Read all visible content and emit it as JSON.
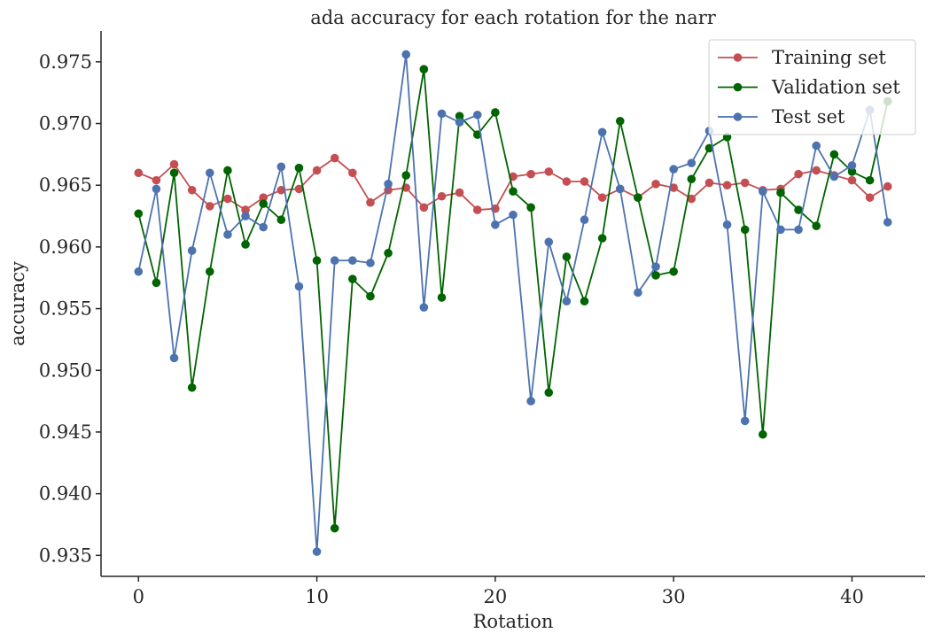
{
  "chart_data": {
    "type": "line",
    "title": "ada accuracy for each rotation for the narr",
    "xlabel": "Rotation",
    "ylabel": "accuracy",
    "xlim": [
      -2.1,
      44.1
    ],
    "ylim": [
      0.9333,
      0.9775
    ],
    "xticks": [
      0,
      10,
      20,
      30,
      40
    ],
    "yticks": [
      0.935,
      0.94,
      0.945,
      0.95,
      0.955,
      0.96,
      0.965,
      0.97,
      0.975
    ],
    "xtick_labels": [
      "0",
      "10",
      "20",
      "30",
      "40"
    ],
    "ytick_labels": [
      "0.935",
      "0.940",
      "0.945",
      "0.950",
      "0.955",
      "0.960",
      "0.965",
      "0.970",
      "0.975"
    ],
    "grid": false,
    "legend_position": "top-right",
    "x": [
      0,
      1,
      2,
      3,
      4,
      5,
      6,
      7,
      8,
      9,
      10,
      11,
      12,
      13,
      14,
      15,
      16,
      17,
      18,
      19,
      20,
      21,
      22,
      23,
      24,
      25,
      26,
      27,
      28,
      29,
      30,
      31,
      32,
      33,
      34,
      35,
      36,
      37,
      38,
      39,
      40,
      41,
      42
    ],
    "series": [
      {
        "name": "Training set",
        "color": "#c44e52",
        "values": [
          0.966,
          0.9654,
          0.9667,
          0.9646,
          0.9633,
          0.9639,
          0.963,
          0.964,
          0.9646,
          0.9647,
          0.9662,
          0.9672,
          0.966,
          0.9636,
          0.9646,
          0.9648,
          0.9632,
          0.9641,
          0.9644,
          0.963,
          0.9631,
          0.9657,
          0.9659,
          0.9661,
          0.9653,
          0.9653,
          0.964,
          0.9647,
          0.964,
          0.9651,
          0.9648,
          0.9639,
          0.9652,
          0.965,
          0.9652,
          0.9646,
          0.9647,
          0.9659,
          0.9662,
          0.9658,
          0.9654,
          0.964,
          0.9649
        ]
      },
      {
        "name": "Validation set",
        "color": "#006400",
        "values": [
          0.9627,
          0.9571,
          0.966,
          0.9486,
          0.958,
          0.9662,
          0.9602,
          0.9635,
          0.9622,
          0.9664,
          0.9589,
          0.9372,
          0.9574,
          0.956,
          0.9595,
          0.9658,
          0.9744,
          0.9559,
          0.9706,
          0.9691,
          0.9709,
          0.9645,
          0.9632,
          0.9482,
          0.9592,
          0.9556,
          0.9607,
          0.9702,
          0.964,
          0.9577,
          0.958,
          0.9655,
          0.968,
          0.9689,
          0.9614,
          0.9448,
          0.9644,
          0.963,
          0.9617,
          0.9675,
          0.9661,
          0.9654,
          0.9718
        ]
      },
      {
        "name": "Test set",
        "color": "#4c72b0",
        "values": [
          0.958,
          0.9647,
          0.951,
          0.9597,
          0.966,
          0.961,
          0.9625,
          0.9616,
          0.9665,
          0.9568,
          0.9353,
          0.9589,
          0.9589,
          0.9587,
          0.9651,
          0.9756,
          0.9551,
          0.9708,
          0.9701,
          0.9707,
          0.9618,
          0.9626,
          0.9475,
          0.9604,
          0.9556,
          0.9622,
          0.9693,
          0.9647,
          0.9563,
          0.9584,
          0.9663,
          0.9668,
          0.9694,
          0.9618,
          0.9459,
          0.9645,
          0.9614,
          0.9614,
          0.9682,
          0.9657,
          0.9666,
          0.9711,
          0.962
        ]
      }
    ]
  }
}
